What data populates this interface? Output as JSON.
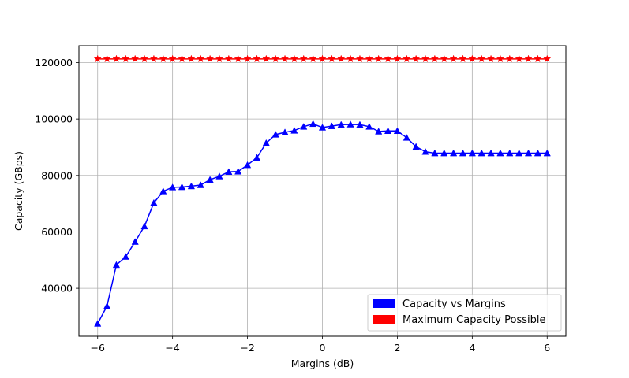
{
  "chart_data": {
    "type": "line",
    "title": "",
    "xlabel": "Margins (dB)",
    "ylabel": "Capacity (GBps)",
    "xlim": [
      -6.5,
      6.5
    ],
    "ylim": [
      23000,
      126000
    ],
    "xticks": [
      -6,
      -4,
      -2,
      0,
      2,
      4,
      6
    ],
    "xtick_labels": [
      "−6",
      "−4",
      "−2",
      "0",
      "2",
      "4",
      "6"
    ],
    "yticks": [
      40000,
      60000,
      80000,
      100000,
      120000
    ],
    "ytick_labels": [
      "40000",
      "60000",
      "80000",
      "100000",
      "120000"
    ],
    "grid": true,
    "legend_position": "lower-right",
    "x": [
      -6.0,
      -5.75,
      -5.5,
      -5.25,
      -5.0,
      -4.75,
      -4.5,
      -4.25,
      -4.0,
      -3.75,
      -3.5,
      -3.25,
      -3.0,
      -2.75,
      -2.5,
      -2.25,
      -2.0,
      -1.75,
      -1.5,
      -1.25,
      -1.0,
      -0.75,
      -0.5,
      -0.25,
      0.0,
      0.25,
      0.5,
      0.75,
      1.0,
      1.25,
      1.5,
      1.75,
      2.0,
      2.25,
      2.5,
      2.75,
      3.0,
      3.25,
      3.5,
      3.75,
      4.0,
      4.25,
      4.5,
      4.75,
      5.0,
      5.25,
      5.5,
      5.75,
      6.0
    ],
    "series": [
      {
        "name": "Capacity vs Margins",
        "color": "#0000ff",
        "marker": "triangle",
        "values": [
          27500,
          33700,
          48300,
          51200,
          56500,
          62000,
          70300,
          74400,
          75800,
          75900,
          76200,
          76600,
          78500,
          79700,
          81300,
          81400,
          83700,
          86300,
          91500,
          94500,
          95300,
          95900,
          97300,
          98300,
          97000,
          97500,
          98000,
          98100,
          98000,
          97300,
          95600,
          95800,
          95800,
          93400,
          90200,
          88400,
          87900,
          87900,
          87900,
          87900,
          87900,
          87900,
          87900,
          87900,
          87900,
          87900,
          87900,
          87900,
          87900
        ]
      },
      {
        "name": "Maximum Capacity Possible",
        "color": "#ff0000",
        "marker": "star",
        "values": [
          121300,
          121300,
          121300,
          121300,
          121300,
          121300,
          121300,
          121300,
          121300,
          121300,
          121300,
          121300,
          121300,
          121300,
          121300,
          121300,
          121300,
          121300,
          121300,
          121300,
          121300,
          121300,
          121300,
          121300,
          121300,
          121300,
          121300,
          121300,
          121300,
          121300,
          121300,
          121300,
          121300,
          121300,
          121300,
          121300,
          121300,
          121300,
          121300,
          121300,
          121300,
          121300,
          121300,
          121300,
          121300,
          121300,
          121300,
          121300,
          121300
        ]
      }
    ]
  }
}
